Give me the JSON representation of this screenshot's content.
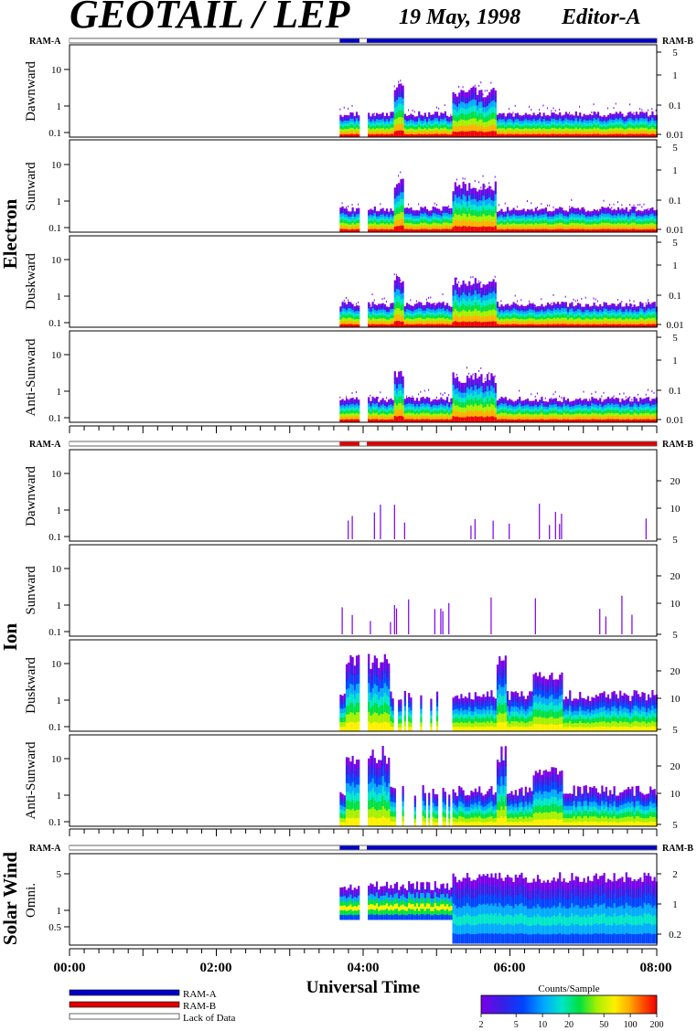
{
  "header": {
    "title": "GEOTAIL / LEP",
    "date": "19 May, 1998",
    "editor": "Editor-A"
  },
  "colors": {
    "ram_a": "#0000c8",
    "ram_b": "#e00000",
    "lack_of_data": "#ffffff",
    "palette": [
      "#7a00e6",
      "#3a1ee6",
      "#0044ff",
      "#00aaff",
      "#00e6c8",
      "#00e040",
      "#a6f000",
      "#fff000",
      "#ffb000",
      "#ff5000",
      "#ee0000"
    ]
  },
  "chart_data": {
    "type": "heatmap",
    "xlabel": "Universal Time",
    "x_ticks": [
      "00:00",
      "02:00",
      "04:00",
      "06:00",
      "08:00"
    ],
    "xlim_hours": [
      0,
      8
    ],
    "ram_labels": {
      "left": "RAM-A",
      "right": "RAM-B"
    },
    "groups": [
      {
        "name": "Electron",
        "ram_bar": [
          {
            "start": 0.0,
            "end": 3.68,
            "state": "lack"
          },
          {
            "start": 3.68,
            "end": 3.95,
            "state": "RAM-A"
          },
          {
            "start": 3.95,
            "end": 4.05,
            "state": "lack"
          },
          {
            "start": 4.05,
            "end": 8.0,
            "state": "RAM-A"
          }
        ],
        "panels": [
          {
            "label": "Dawnward",
            "left_ticks": [
              "0.1",
              "1",
              "10"
            ],
            "right_ticks": [
              "0.01",
              "0.1",
              "1",
              "5"
            ]
          },
          {
            "label": "Sunward",
            "left_ticks": [
              "0.1",
              "1",
              "10"
            ],
            "right_ticks": [
              "0.01",
              "0.1",
              "1",
              "5"
            ]
          },
          {
            "label": "Duskward",
            "left_ticks": [
              "0.1",
              "1",
              "10"
            ],
            "right_ticks": [
              "0.01",
              "0.1",
              "1",
              "5"
            ]
          },
          {
            "label": "Anti-Sunward",
            "left_ticks": [
              "0.1",
              "1",
              "10"
            ],
            "right_ticks": [
              "0.01",
              "0.1",
              "1",
              "5"
            ]
          }
        ]
      },
      {
        "name": "Ion",
        "ram_bar": [
          {
            "start": 0.0,
            "end": 3.68,
            "state": "lack"
          },
          {
            "start": 3.68,
            "end": 3.95,
            "state": "RAM-B"
          },
          {
            "start": 3.95,
            "end": 4.05,
            "state": "lack"
          },
          {
            "start": 4.05,
            "end": 8.0,
            "state": "RAM-B"
          }
        ],
        "panels": [
          {
            "label": "Dawnward",
            "left_ticks": [
              "0.1",
              "1",
              "10"
            ],
            "right_ticks": [
              "5",
              "10",
              "20"
            ]
          },
          {
            "label": "Sunward",
            "left_ticks": [
              "0.1",
              "1",
              "10"
            ],
            "right_ticks": [
              "5",
              "10",
              "20"
            ]
          },
          {
            "label": "Duskward",
            "left_ticks": [
              "0.1",
              "1",
              "10"
            ],
            "right_ticks": [
              "5",
              "10",
              "20"
            ]
          },
          {
            "label": "Anti-Sunward",
            "left_ticks": [
              "0.1",
              "1",
              "10"
            ],
            "right_ticks": [
              "5",
              "10",
              "20"
            ]
          }
        ]
      },
      {
        "name": "Solar Wind",
        "ram_bar": [
          {
            "start": 0.0,
            "end": 3.68,
            "state": "lack"
          },
          {
            "start": 3.68,
            "end": 3.95,
            "state": "RAM-A"
          },
          {
            "start": 3.95,
            "end": 4.05,
            "state": "lack"
          },
          {
            "start": 4.05,
            "end": 8.0,
            "state": "RAM-A"
          }
        ],
        "panels": [
          {
            "label": "Omni.",
            "left_ticks": [
              "0.5",
              "1",
              "5"
            ],
            "right_ticks": [
              "0.2",
              "1",
              "2"
            ]
          }
        ]
      }
    ],
    "legend": [
      "RAM-A",
      "RAM-B",
      "Lack of Data"
    ],
    "colorbar": {
      "title": "Counts/Sample",
      "ticks": [
        "2",
        "5",
        "10",
        "20",
        "50",
        "100",
        "200"
      ],
      "range": [
        2,
        200
      ],
      "scale": "log"
    }
  }
}
